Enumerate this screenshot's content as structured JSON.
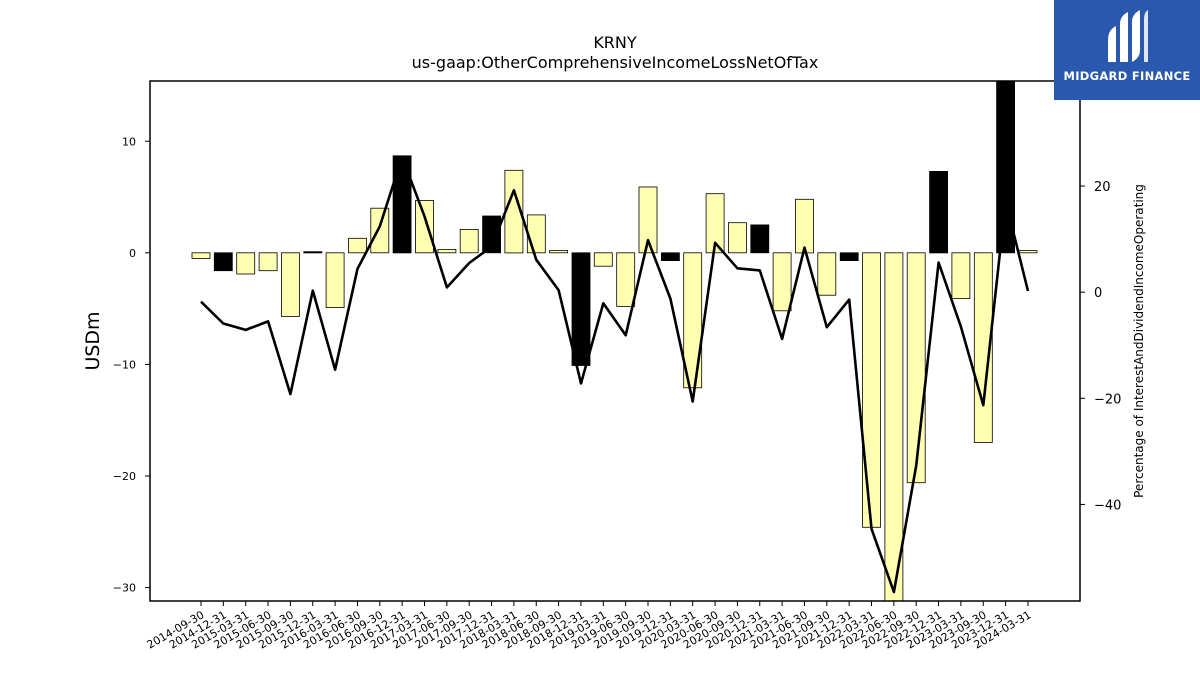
{
  "brand": {
    "name": "MIDGARD FINANCE",
    "bg_color": "#2a58ae",
    "icon": "midgard-logo-icon"
  },
  "chart_data": {
    "type": "bar",
    "title": "KRNY",
    "subtitle": "us-gaap:OtherComprehensiveIncomeLossNetOfTax",
    "ylabel": "USDm",
    "y2label": "Percentage of InterestAndDividendIncomeOperating",
    "ylim": [
      -31.2,
      15.4
    ],
    "y2lim": [
      -58.2,
      39.8
    ],
    "yticks": [
      10,
      0,
      -10,
      -20,
      -30
    ],
    "y2ticks": [
      20,
      0,
      -20,
      -40
    ],
    "grid": false,
    "legend": "none",
    "colors": {
      "positive_bar": "#ffffb2",
      "negative_bar": "#000000",
      "line": "#000000"
    },
    "categories": [
      "2014-09-30",
      "2014-12-31",
      "2015-03-31",
      "2015-06-30",
      "2015-09-30",
      "2015-12-31",
      "2016-03-31",
      "2016-06-30",
      "2016-09-30",
      "2016-12-31",
      "2017-03-31",
      "2017-06-30",
      "2017-09-30",
      "2017-12-31",
      "2018-03-31",
      "2018-06-30",
      "2018-09-30",
      "2018-12-31",
      "2019-03-31",
      "2019-06-30",
      "2019-09-30",
      "2019-12-31",
      "2020-03-31",
      "2020-06-30",
      "2020-09-30",
      "2020-12-31",
      "2021-03-31",
      "2021-06-30",
      "2021-09-30",
      "2021-12-31",
      "2022-03-31",
      "2022-06-30",
      "2022-09-30",
      "2022-12-31",
      "2023-03-31",
      "2023-09-30",
      "2023-12-31",
      "2024-03-31"
    ],
    "bars": {
      "name": "us-gaap:OtherComprehensiveIncomeLossNetOfTax",
      "values": [
        -0.5,
        -1.6,
        -1.9,
        -1.6,
        -5.7,
        0.1,
        -4.9,
        1.3,
        4.0,
        8.7,
        4.7,
        0.3,
        2.1,
        3.3,
        7.4,
        3.4,
        0.2,
        -10.1,
        -1.2,
        -4.8,
        5.9,
        -0.7,
        -12.1,
        5.3,
        2.7,
        2.5,
        -5.2,
        4.8,
        -3.8,
        -0.7,
        -24.6,
        -31.2,
        -20.6,
        7.3,
        -4.1,
        -17.0,
        15.4,
        0.2
      ],
      "highlight": [
        false,
        true,
        false,
        false,
        false,
        true,
        false,
        false,
        false,
        true,
        false,
        false,
        false,
        true,
        false,
        false,
        false,
        true,
        false,
        false,
        false,
        true,
        false,
        false,
        false,
        true,
        false,
        false,
        false,
        true,
        false,
        false,
        false,
        true,
        false,
        false,
        true,
        false
      ]
    },
    "line": {
      "name": "Percentage of InterestAndDividendIncomeOperating",
      "values": [
        -1.8,
        -5.9,
        -7.1,
        -5.5,
        -19.2,
        0.3,
        -14.6,
        4.4,
        12.4,
        25.5,
        14.3,
        0.9,
        5.5,
        8.6,
        19.2,
        6.1,
        0.4,
        -17.2,
        -2.1,
        -8.1,
        9.8,
        -1.2,
        -20.6,
        9.3,
        4.5,
        4.1,
        -8.8,
        8.4,
        -6.6,
        -1.4,
        -44.6,
        -56.5,
        -32.7,
        5.6,
        -6.5,
        -21.3,
        17.2,
        0.2
      ]
    }
  }
}
